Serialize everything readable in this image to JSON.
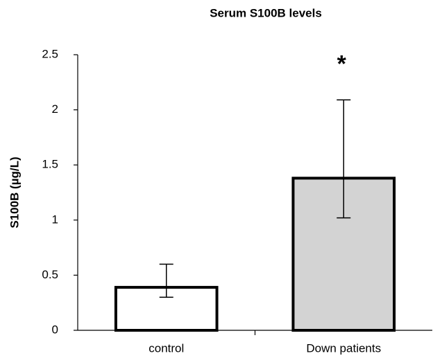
{
  "chart_data": {
    "type": "bar",
    "title": "Serum S100B levels",
    "y_label": "S100B (µg/L)",
    "categories": [
      "control",
      "Down patients"
    ],
    "values": [
      0.39,
      1.38
    ],
    "errors_plus": [
      0.21,
      0.71
    ],
    "errors_minus": [
      0.09,
      0.36
    ],
    "colors": [
      "#ffffff",
      "#d3d3d3"
    ],
    "annotations": [
      {
        "category": 1,
        "text": "*"
      }
    ],
    "ylim": [
      0,
      2.5
    ],
    "yticks": [
      0,
      0.5,
      1,
      1.5,
      2,
      2.5
    ],
    "grid": false
  }
}
